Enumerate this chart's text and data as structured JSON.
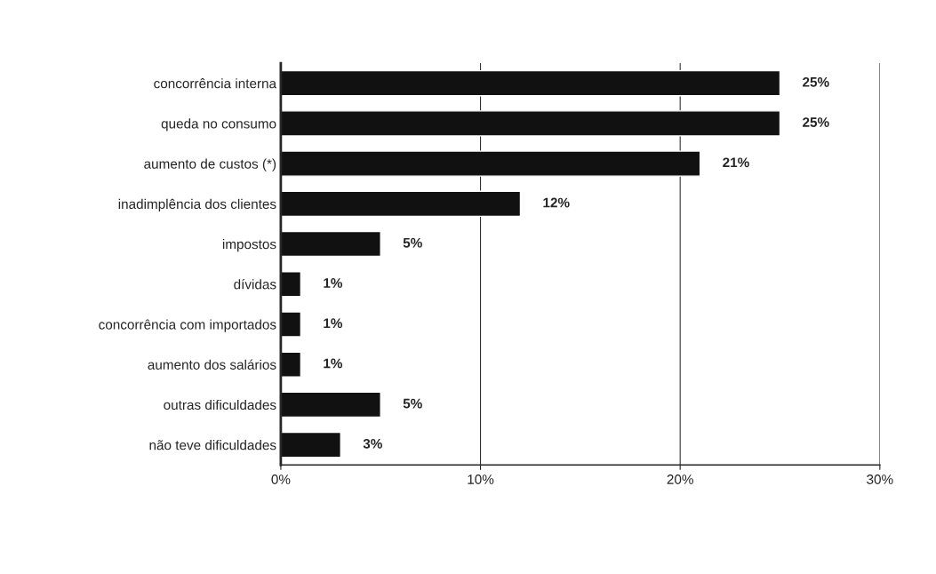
{
  "chart_data": {
    "type": "bar",
    "orientation": "horizontal",
    "categories": [
      "concorrência interna",
      "queda no consumo",
      "aumento de custos (*)",
      "inadimplência dos clientes",
      "impostos",
      "dívidas",
      "concorrência com importados",
      "aumento dos salários",
      "outras dificuldades",
      "não teve dificuldades"
    ],
    "values": [
      25,
      25,
      21,
      12,
      5,
      1,
      1,
      1,
      5,
      3
    ],
    "value_labels": [
      "25%",
      "25%",
      "21%",
      "12%",
      "5%",
      "1%",
      "1%",
      "1%",
      "5%",
      "3%"
    ],
    "color": "#111111",
    "xlim": [
      0,
      30
    ],
    "xticks": [
      {
        "value": 0,
        "label": "0%"
      },
      {
        "value": 10,
        "label": "10%"
      },
      {
        "value": 20,
        "label": "20%"
      },
      {
        "value": 30,
        "label": "30%"
      }
    ],
    "grid": "x",
    "legend": false
  }
}
